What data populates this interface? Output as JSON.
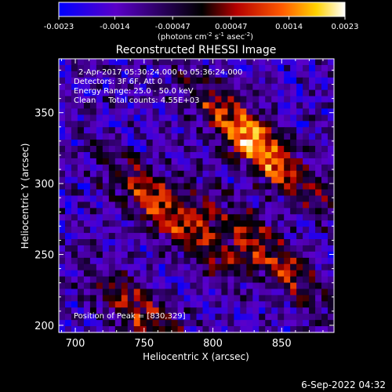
{
  "colorbar": {
    "ticks": [
      "-0.0023",
      "-0.0014",
      "-0.00047",
      "0.00047",
      "0.0014",
      "0.0023"
    ],
    "tick_values": [
      -0.0023,
      -0.0014,
      -0.00047,
      0.00047,
      0.0014,
      0.0023
    ],
    "range": [
      -0.0023,
      0.0023
    ],
    "units_parts": [
      "(photons cm",
      "-2",
      " s",
      "-1",
      " asec",
      "-2",
      ")"
    ],
    "colors": [
      "#0000ff",
      "#5a00c8",
      "#000000",
      "#b40000",
      "#ff5a00",
      "#ffd200",
      "#ffffff"
    ]
  },
  "chart_data": {
    "type": "heatmap",
    "title": "Reconstructed RHESSI Image",
    "xlabel": "Heliocentric X (arcsec)",
    "ylabel": "Heliocentric Y (arcsec)",
    "xlim": [
      688,
      888
    ],
    "ylim": [
      195,
      388
    ],
    "xticks": [
      700,
      750,
      800,
      850
    ],
    "yticks": [
      200,
      250,
      300,
      350
    ],
    "info_lines": [
      "2-Apr-2017 05:30:24.000 to 05:36:24.000",
      "Detectors: 3F 6F, Att 0",
      "Energy Range: 25.0 - 50.0 keV",
      "Clean     Total counts: 4.55E+03"
    ],
    "peak_label": "Position of Peak = [830,329]",
    "peak": [
      830,
      329
    ],
    "sources": [
      {
        "x": 830,
        "y": 329,
        "peak": 0.0023
      },
      {
        "x": 768,
        "y": 278,
        "peak": 0.0019
      },
      {
        "x": 840,
        "y": 250,
        "peak": 0.0015
      },
      {
        "x": 750,
        "y": 205,
        "peak": 0.0014
      }
    ]
  },
  "footer": {
    "timestamp": "6-Sep-2022 04:32"
  }
}
